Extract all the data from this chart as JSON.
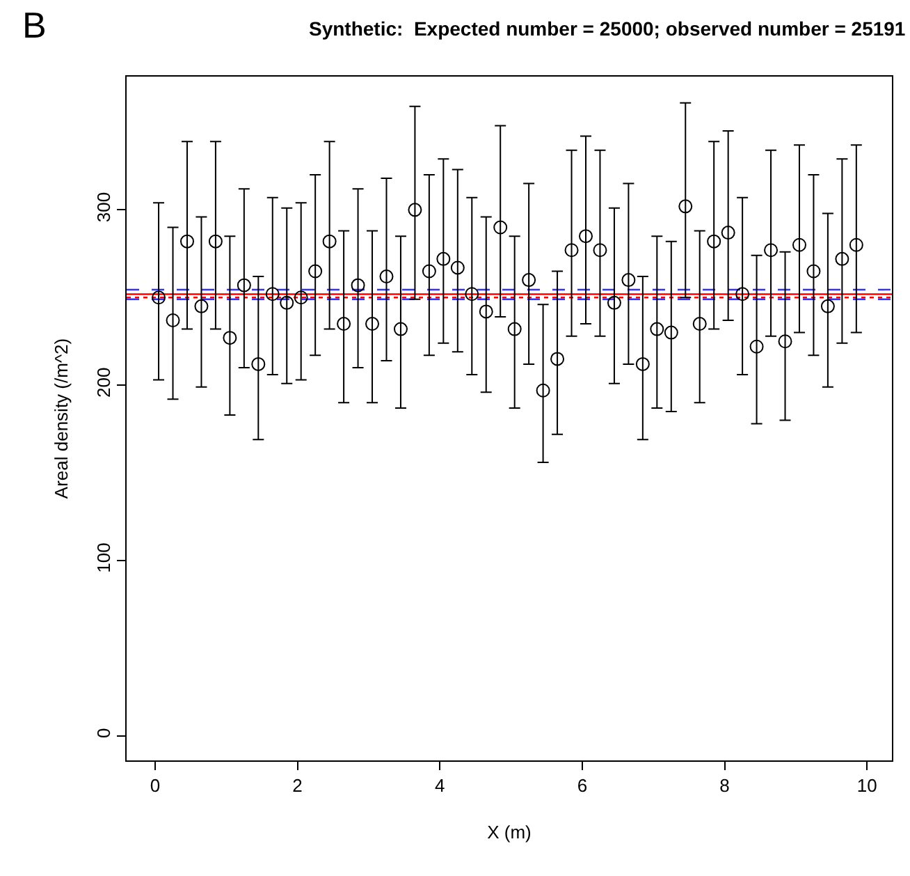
{
  "chart_data": {
    "type": "scatter",
    "title": "Synthetic:  Expected number = 25000; observed number = 25191",
    "xlabel": "X (m)",
    "ylabel": "Areal density (/m^2)",
    "annotations": [
      "B"
    ],
    "x": [
      0.05,
      0.25,
      0.45,
      0.65,
      0.85,
      1.05,
      1.25,
      1.45,
      1.65,
      1.85,
      2.05,
      2.25,
      2.45,
      2.65,
      2.85,
      3.05,
      3.25,
      3.45,
      3.65,
      3.85,
      4.05,
      4.25,
      4.45,
      4.65,
      4.85,
      5.05,
      5.25,
      5.45,
      5.65,
      5.85,
      6.05,
      6.25,
      6.45,
      6.65,
      6.85,
      7.05,
      7.25,
      7.45,
      7.65,
      7.85,
      8.05,
      8.25,
      8.45,
      8.65,
      8.85,
      9.05,
      9.25,
      9.45,
      9.65,
      9.85
    ],
    "series": [
      {
        "color": "#000000",
        "values": [
          250,
          237,
          282,
          245,
          282,
          227,
          257,
          212,
          252,
          247,
          250,
          265,
          282,
          235,
          257,
          235,
          262,
          232,
          300,
          265,
          272,
          267,
          252,
          242,
          290,
          232,
          260,
          197,
          215,
          277,
          285,
          277,
          247,
          260,
          212,
          232,
          230,
          302,
          235,
          282,
          287,
          252,
          222,
          277,
          225,
          280,
          265,
          245,
          272,
          280
        ],
        "errors": [
          [
            203,
            304
          ],
          [
            192,
            290
          ],
          [
            232,
            339
          ],
          [
            199,
            296
          ],
          [
            232,
            339
          ],
          [
            183,
            285
          ],
          [
            210,
            312
          ],
          [
            169,
            262
          ],
          [
            206,
            307
          ],
          [
            201,
            301
          ],
          [
            203,
            304
          ],
          [
            217,
            320
          ],
          [
            232,
            339
          ],
          [
            190,
            288
          ],
          [
            210,
            312
          ],
          [
            190,
            288
          ],
          [
            214,
            318
          ],
          [
            187,
            285
          ],
          [
            249,
            359
          ],
          [
            217,
            320
          ],
          [
            224,
            329
          ],
          [
            219,
            323
          ],
          [
            206,
            307
          ],
          [
            196,
            296
          ],
          [
            239,
            348
          ],
          [
            187,
            285
          ],
          [
            212,
            315
          ],
          [
            156,
            246
          ],
          [
            172,
            265
          ],
          [
            228,
            334
          ],
          [
            235,
            342
          ],
          [
            228,
            334
          ],
          [
            201,
            301
          ],
          [
            212,
            315
          ],
          [
            169,
            262
          ],
          [
            187,
            285
          ],
          [
            185,
            282
          ],
          [
            250,
            361
          ],
          [
            190,
            288
          ],
          [
            232,
            339
          ],
          [
            237,
            345
          ],
          [
            206,
            307
          ],
          [
            178,
            274
          ],
          [
            228,
            334
          ],
          [
            180,
            276
          ],
          [
            230,
            337
          ],
          [
            217,
            320
          ],
          [
            199,
            298
          ],
          [
            224,
            329
          ],
          [
            230,
            337
          ]
        ]
      }
    ],
    "marker": "circle",
    "xlim": [
      -0.4,
      10.35
    ],
    "ylim": [
      -14,
      376
    ],
    "xticks": [
      0,
      2,
      4,
      6,
      8,
      10
    ],
    "yticks": [
      0,
      100,
      200,
      300
    ],
    "ref_lines": [
      {
        "axis": "y",
        "value": 251.9,
        "color": "#ff0000",
        "line_style": "solid"
      },
      {
        "axis": "y",
        "value": 250,
        "color": "#ff0000",
        "line_style": "dotted"
      },
      {
        "axis": "y",
        "value": 254.5,
        "color": "#3333ff",
        "line_style": "dashed"
      },
      {
        "axis": "y",
        "value": 249,
        "color": "#3333ff",
        "line_style": "dashed"
      }
    ],
    "grid": false
  }
}
